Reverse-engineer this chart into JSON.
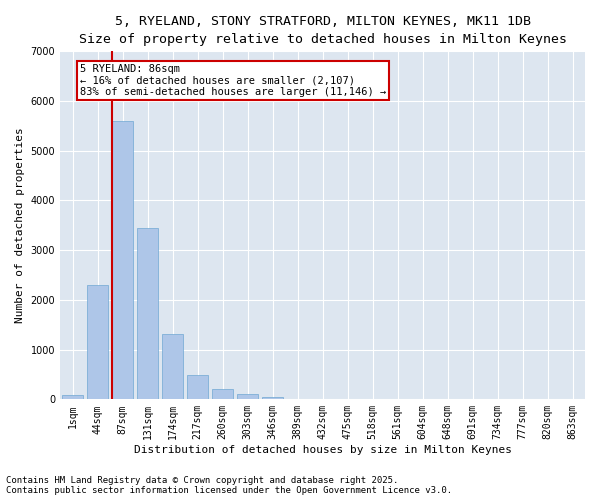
{
  "title_line1": "5, RYELAND, STONY STRATFORD, MILTON KEYNES, MK11 1DB",
  "title_line2": "Size of property relative to detached houses in Milton Keynes",
  "xlabel": "Distribution of detached houses by size in Milton Keynes",
  "ylabel": "Number of detached properties",
  "categories": [
    "1sqm",
    "44sqm",
    "87sqm",
    "131sqm",
    "174sqm",
    "217sqm",
    "260sqm",
    "303sqm",
    "346sqm",
    "389sqm",
    "432sqm",
    "475sqm",
    "518sqm",
    "561sqm",
    "604sqm",
    "648sqm",
    "691sqm",
    "734sqm",
    "777sqm",
    "820sqm",
    "863sqm"
  ],
  "values": [
    90,
    2300,
    5600,
    3450,
    1310,
    490,
    200,
    100,
    50,
    0,
    0,
    0,
    0,
    0,
    0,
    0,
    0,
    0,
    0,
    0,
    0
  ],
  "bar_color": "#aec6e8",
  "bar_edge_color": "#6fa8d4",
  "vline_color": "#cc0000",
  "annotation_title": "5 RYELAND: 86sqm",
  "annotation_line1": "← 16% of detached houses are smaller (2,107)",
  "annotation_line2": "83% of semi-detached houses are larger (11,146) →",
  "annotation_box_color": "#cc0000",
  "ylim": [
    0,
    7000
  ],
  "yticks": [
    0,
    1000,
    2000,
    3000,
    4000,
    5000,
    6000,
    7000
  ],
  "background_color": "#dde6f0",
  "grid_color": "#ffffff",
  "footer_line1": "Contains HM Land Registry data © Crown copyright and database right 2025.",
  "footer_line2": "Contains public sector information licensed under the Open Government Licence v3.0.",
  "title_fontsize": 9.5,
  "subtitle_fontsize": 8.5,
  "axis_label_fontsize": 8,
  "tick_fontsize": 7,
  "footer_fontsize": 6.5,
  "annotation_fontsize": 7.5
}
